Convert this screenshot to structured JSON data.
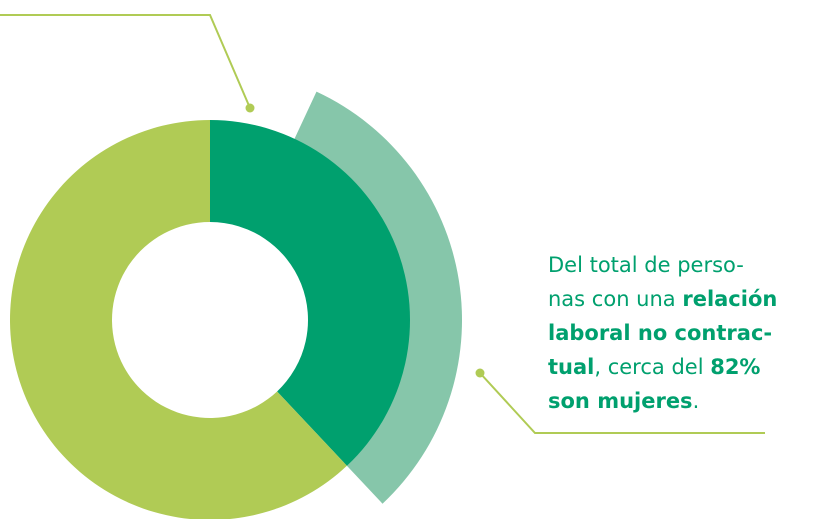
{
  "chart_data": {
    "type": "donut",
    "categories": [
      null,
      null
    ],
    "values": [
      38,
      62
    ],
    "colors": [
      "#00a06e",
      "#b0cb55"
    ],
    "highlight_color": "#86c6aa",
    "annotation": [
      [
        {
          "text": "Del total de perso-",
          "bold": false
        }
      ],
      [
        {
          "text": "nas con una ",
          "bold": false
        },
        {
          "text": "relación",
          "bold": true
        }
      ],
      [
        {
          "text": "laboral no contrac-",
          "bold": true
        }
      ],
      [
        {
          "text": "tual",
          "bold": true
        },
        {
          "text": ", cerca del ",
          "bold": false
        },
        {
          "text": "82%",
          "bold": true
        }
      ],
      [
        {
          "text": "son mujeres",
          "bold": true
        },
        {
          "text": ".",
          "bold": false
        }
      ]
    ]
  }
}
